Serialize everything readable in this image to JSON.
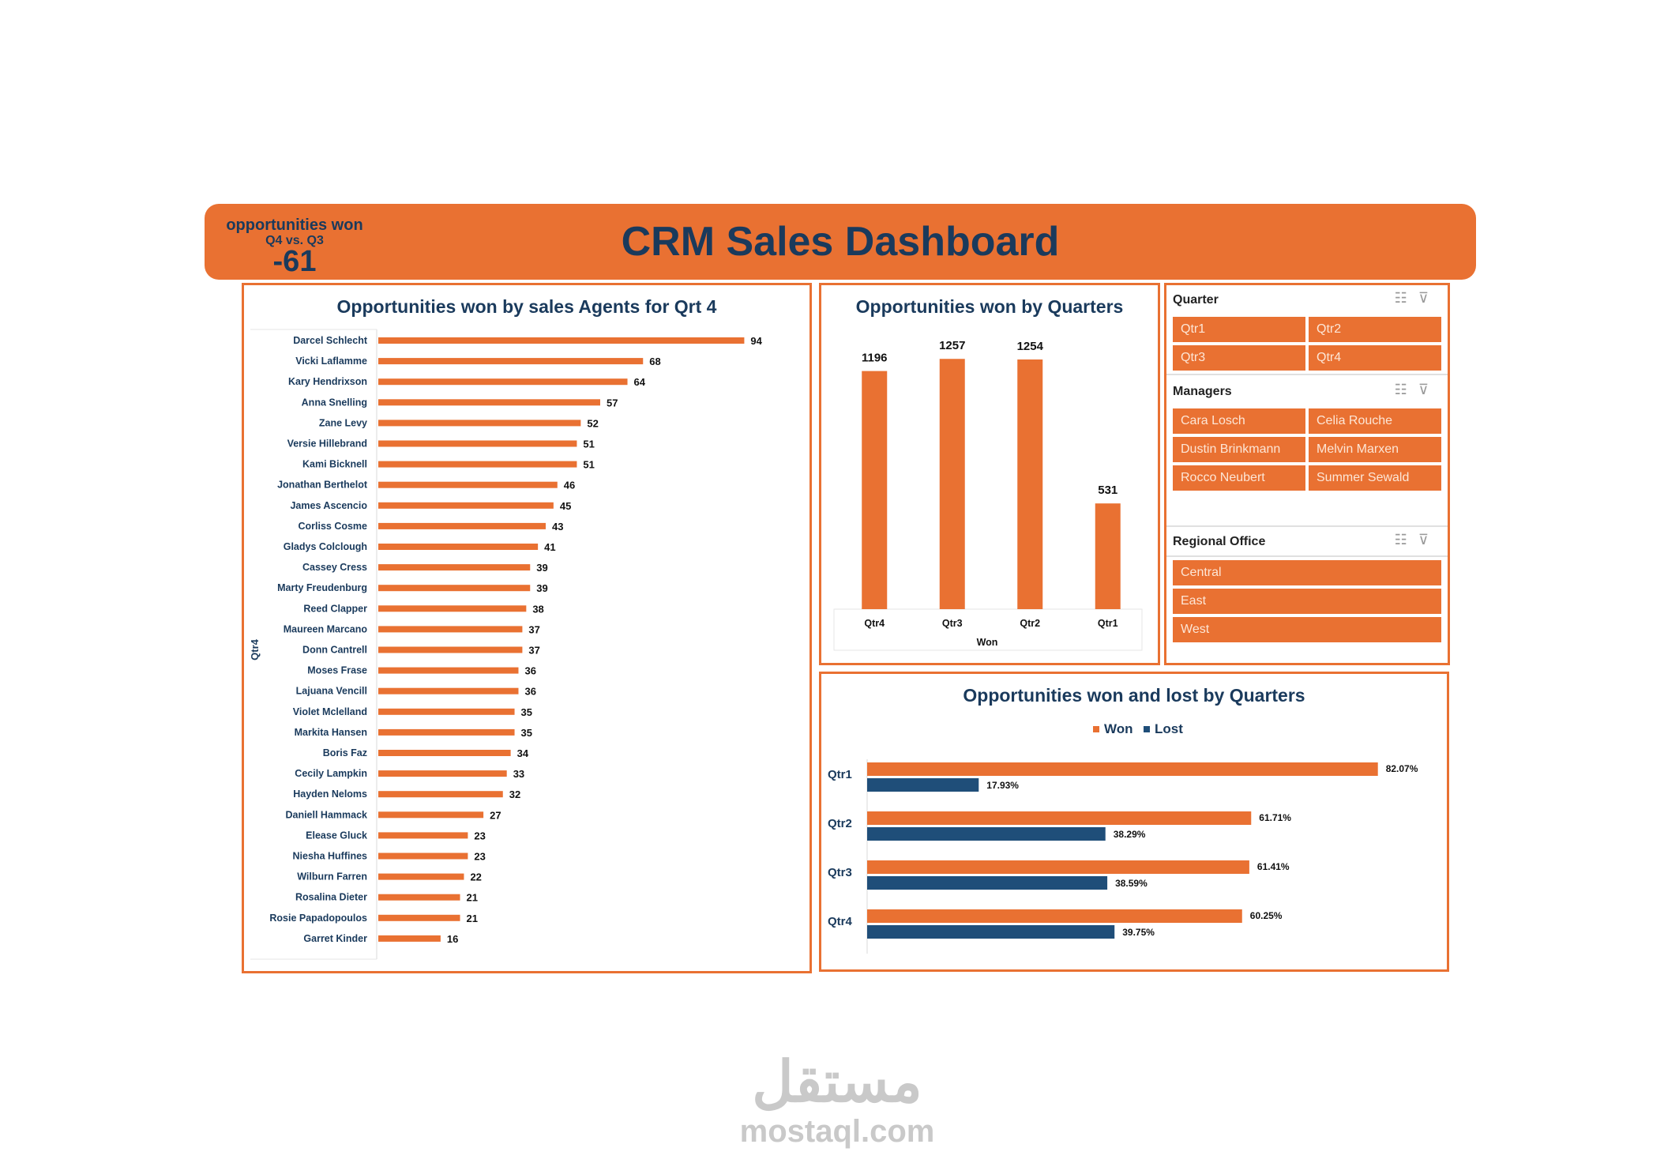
{
  "header": {
    "title": "CRM Sales Dashboard",
    "kpi_title": "opportunities won",
    "kpi_subtitle": "Q4 vs. Q3",
    "kpi_value": "-61"
  },
  "colors": {
    "accent": "#e97132",
    "navy": "#1a3a5c",
    "lost": "#1f4e79"
  },
  "chart_data": [
    {
      "type": "bar",
      "orientation": "horizontal",
      "title": "Opportunities won by sales Agents for Qrt 4",
      "ylabel": "Qtr4",
      "categories": [
        "Darcel Schlecht",
        "Vicki Laflamme",
        "Kary Hendrixson",
        "Anna Snelling",
        "Zane Levy",
        "Versie Hillebrand",
        "Kami Bicknell",
        "Jonathan Berthelot",
        "James Ascencio",
        "Corliss Cosme",
        "Gladys Colclough",
        "Cassey Cress",
        "Marty Freudenburg",
        "Reed Clapper",
        "Maureen Marcano",
        "Donn Cantrell",
        "Moses Frase",
        "Lajuana Vencill",
        "Violet Mclelland",
        "Markita Hansen",
        "Boris Faz",
        "Cecily Lampkin",
        "Hayden Neloms",
        "Daniell Hammack",
        "Elease Gluck",
        "Niesha Huffines",
        "Wilburn Farren",
        "Rosalina Dieter",
        "Rosie Papadopoulos",
        "Garret Kinder"
      ],
      "values": [
        94,
        68,
        64,
        57,
        52,
        51,
        51,
        46,
        45,
        43,
        41,
        39,
        39,
        38,
        37,
        37,
        36,
        36,
        35,
        35,
        34,
        33,
        32,
        27,
        23,
        23,
        22,
        21,
        21,
        16
      ]
    },
    {
      "type": "bar",
      "title": "Opportunities won by Quarters",
      "xlabel": "Won",
      "categories": [
        "Qtr4",
        "Qtr3",
        "Qtr2",
        "Qtr1"
      ],
      "values": [
        1196,
        1257,
        1254,
        531
      ]
    },
    {
      "type": "bar",
      "orientation": "horizontal",
      "title": "Opportunities won and lost by Quarters",
      "legend": "top",
      "categories": [
        "Qtr1",
        "Qtr2",
        "Qtr3",
        "Qtr4"
      ],
      "series": [
        {
          "name": "Won",
          "values": [
            82.07,
            61.71,
            61.41,
            60.25
          ],
          "labels": [
            "82.07%",
            "61.71%",
            "61.41%",
            "60.25%"
          ]
        },
        {
          "name": "Lost",
          "values": [
            17.93,
            38.29,
            38.59,
            39.75
          ],
          "labels": [
            "17.93%",
            "38.29%",
            "38.59%",
            "39.75%"
          ]
        }
      ]
    }
  ],
  "slicers": {
    "quarter": {
      "title": "Quarter",
      "items": [
        "Qtr1",
        "Qtr2",
        "Qtr3",
        "Qtr4"
      ]
    },
    "managers": {
      "title": "Managers",
      "items": [
        "Cara Losch",
        "Celia Rouche",
        "Dustin Brinkmann",
        "Melvin Marxen",
        "Rocco Neubert",
        "Summer Sewald"
      ]
    },
    "regional": {
      "title": "Regional Office",
      "items": [
        "Central",
        "East",
        "West"
      ]
    },
    "icons": [
      "multi-select-icon",
      "clear-filter-icon"
    ]
  },
  "watermark": {
    "arabic": "مستقل",
    "latin": "mostaql.com"
  }
}
